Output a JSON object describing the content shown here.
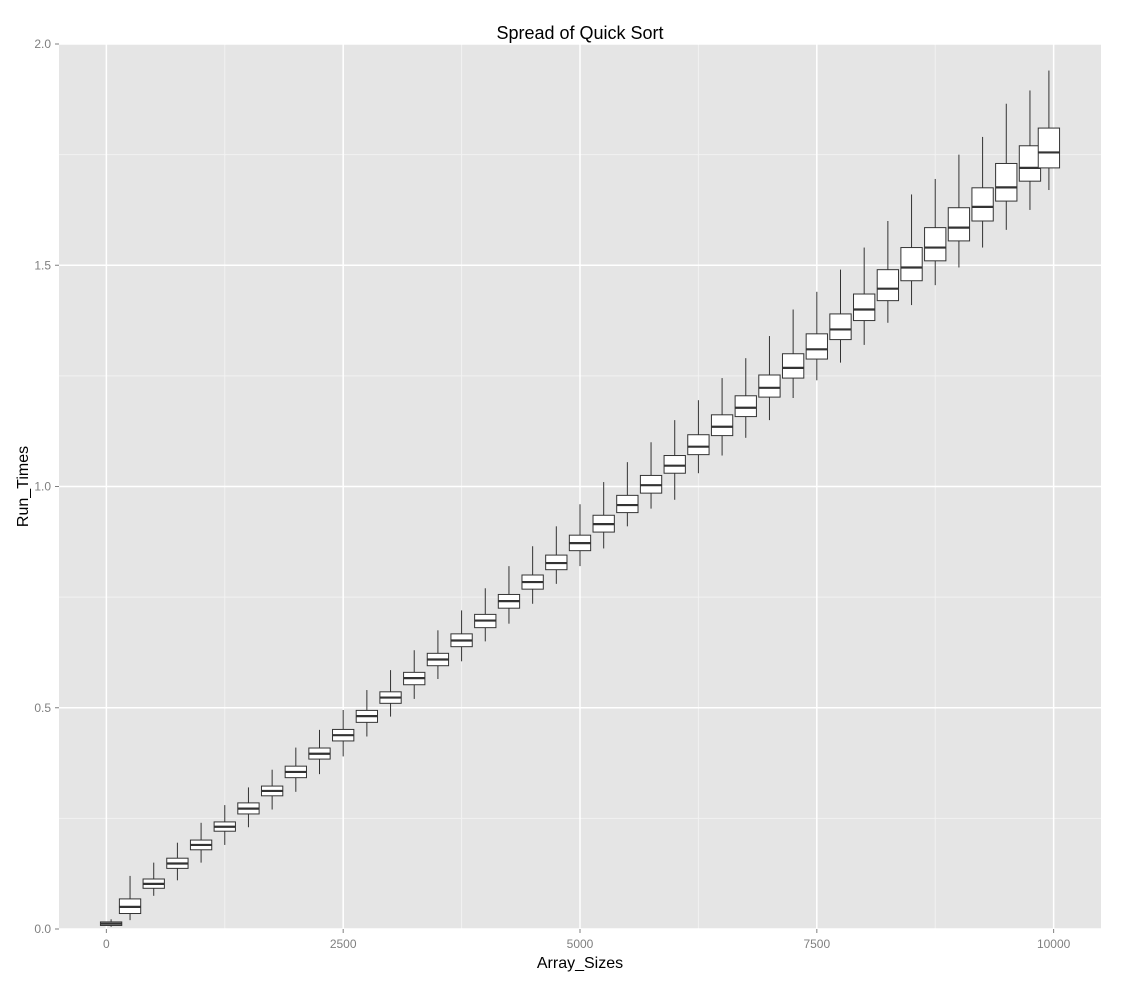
{
  "chart_data": {
    "type": "boxplot",
    "title": "Spread of Quick Sort",
    "xlabel": "Array_Sizes",
    "ylabel": "Run_Times",
    "xlim": [
      -500,
      10500
    ],
    "ylim": [
      0,
      2.0
    ],
    "x_ticks": [
      0,
      2500,
      5000,
      7500,
      10000
    ],
    "x_tick_labels": [
      "0",
      "2500",
      "5000",
      "7500",
      "10000"
    ],
    "y_ticks": [
      0.0,
      0.5,
      1.0,
      1.5,
      2.0
    ],
    "y_tick_labels": [
      "0.0",
      "0.5",
      "1.0",
      "1.5",
      "2.0"
    ],
    "grid": true,
    "colors": {
      "panel_bg": "#e5e5e5",
      "grid_major": "#ffffff",
      "grid_minor": "#f2f2f2",
      "box_fill": "#ffffff",
      "box_stroke": "#333333"
    },
    "boxes": [
      {
        "x": 50,
        "min": 0.005,
        "q1": 0.008,
        "median": 0.012,
        "q3": 0.016,
        "max": 0.022
      },
      {
        "x": 250,
        "min": 0.02,
        "q1": 0.035,
        "median": 0.05,
        "q3": 0.068,
        "max": 0.12
      },
      {
        "x": 500,
        "min": 0.075,
        "q1": 0.092,
        "median": 0.102,
        "q3": 0.113,
        "max": 0.15
      },
      {
        "x": 750,
        "min": 0.11,
        "q1": 0.137,
        "median": 0.148,
        "q3": 0.16,
        "max": 0.195
      },
      {
        "x": 1000,
        "min": 0.15,
        "q1": 0.179,
        "median": 0.19,
        "q3": 0.201,
        "max": 0.24
      },
      {
        "x": 1250,
        "min": 0.19,
        "q1": 0.221,
        "median": 0.231,
        "q3": 0.242,
        "max": 0.28
      },
      {
        "x": 1500,
        "min": 0.23,
        "q1": 0.26,
        "median": 0.272,
        "q3": 0.285,
        "max": 0.32
      },
      {
        "x": 1750,
        "min": 0.27,
        "q1": 0.301,
        "median": 0.312,
        "q3": 0.323,
        "max": 0.36
      },
      {
        "x": 2000,
        "min": 0.31,
        "q1": 0.342,
        "median": 0.355,
        "q3": 0.368,
        "max": 0.41
      },
      {
        "x": 2250,
        "min": 0.35,
        "q1": 0.384,
        "median": 0.396,
        "q3": 0.409,
        "max": 0.45
      },
      {
        "x": 2500,
        "min": 0.39,
        "q1": 0.425,
        "median": 0.438,
        "q3": 0.451,
        "max": 0.495
      },
      {
        "x": 2750,
        "min": 0.435,
        "q1": 0.467,
        "median": 0.481,
        "q3": 0.494,
        "max": 0.54
      },
      {
        "x": 3000,
        "min": 0.48,
        "q1": 0.51,
        "median": 0.523,
        "q3": 0.536,
        "max": 0.585
      },
      {
        "x": 3250,
        "min": 0.52,
        "q1": 0.552,
        "median": 0.567,
        "q3": 0.58,
        "max": 0.63
      },
      {
        "x": 3500,
        "min": 0.565,
        "q1": 0.595,
        "median": 0.609,
        "q3": 0.623,
        "max": 0.675
      },
      {
        "x": 3750,
        "min": 0.605,
        "q1": 0.638,
        "median": 0.652,
        "q3": 0.667,
        "max": 0.72
      },
      {
        "x": 4000,
        "min": 0.65,
        "q1": 0.681,
        "median": 0.697,
        "q3": 0.711,
        "max": 0.77
      },
      {
        "x": 4250,
        "min": 0.69,
        "q1": 0.725,
        "median": 0.741,
        "q3": 0.756,
        "max": 0.82
      },
      {
        "x": 4500,
        "min": 0.735,
        "q1": 0.768,
        "median": 0.784,
        "q3": 0.8,
        "max": 0.865
      },
      {
        "x": 4750,
        "min": 0.78,
        "q1": 0.812,
        "median": 0.827,
        "q3": 0.845,
        "max": 0.91
      },
      {
        "x": 5000,
        "min": 0.82,
        "q1": 0.855,
        "median": 0.872,
        "q3": 0.89,
        "max": 0.96
      },
      {
        "x": 5250,
        "min": 0.86,
        "q1": 0.897,
        "median": 0.915,
        "q3": 0.935,
        "max": 1.01
      },
      {
        "x": 5500,
        "min": 0.91,
        "q1": 0.941,
        "median": 0.958,
        "q3": 0.98,
        "max": 1.055
      },
      {
        "x": 5750,
        "min": 0.95,
        "q1": 0.985,
        "median": 1.003,
        "q3": 1.025,
        "max": 1.1
      },
      {
        "x": 6000,
        "min": 0.97,
        "q1": 1.03,
        "median": 1.047,
        "q3": 1.07,
        "max": 1.15
      },
      {
        "x": 6250,
        "min": 1.03,
        "q1": 1.072,
        "median": 1.09,
        "q3": 1.117,
        "max": 1.195
      },
      {
        "x": 6500,
        "min": 1.07,
        "q1": 1.115,
        "median": 1.135,
        "q3": 1.162,
        "max": 1.245
      },
      {
        "x": 6750,
        "min": 1.11,
        "q1": 1.158,
        "median": 1.178,
        "q3": 1.205,
        "max": 1.29
      },
      {
        "x": 7000,
        "min": 1.15,
        "q1": 1.202,
        "median": 1.223,
        "q3": 1.252,
        "max": 1.34
      },
      {
        "x": 7250,
        "min": 1.2,
        "q1": 1.245,
        "median": 1.268,
        "q3": 1.3,
        "max": 1.4
      },
      {
        "x": 7500,
        "min": 1.24,
        "q1": 1.288,
        "median": 1.31,
        "q3": 1.345,
        "max": 1.44
      },
      {
        "x": 7750,
        "min": 1.28,
        "q1": 1.332,
        "median": 1.355,
        "q3": 1.39,
        "max": 1.49
      },
      {
        "x": 8000,
        "min": 1.32,
        "q1": 1.375,
        "median": 1.4,
        "q3": 1.435,
        "max": 1.54
      },
      {
        "x": 8250,
        "min": 1.37,
        "q1": 1.42,
        "median": 1.447,
        "q3": 1.49,
        "max": 1.6
      },
      {
        "x": 8500,
        "min": 1.41,
        "q1": 1.465,
        "median": 1.495,
        "q3": 1.54,
        "max": 1.66
      },
      {
        "x": 8750,
        "min": 1.455,
        "q1": 1.51,
        "median": 1.54,
        "q3": 1.585,
        "max": 1.695
      },
      {
        "x": 9000,
        "min": 1.495,
        "q1": 1.555,
        "median": 1.585,
        "q3": 1.63,
        "max": 1.75
      },
      {
        "x": 9250,
        "min": 1.54,
        "q1": 1.6,
        "median": 1.632,
        "q3": 1.675,
        "max": 1.79
      },
      {
        "x": 9500,
        "min": 1.58,
        "q1": 1.645,
        "median": 1.676,
        "q3": 1.73,
        "max": 1.865
      },
      {
        "x": 9750,
        "min": 1.625,
        "q1": 1.69,
        "median": 1.72,
        "q3": 1.77,
        "max": 1.895
      },
      {
        "x": 9950,
        "min": 1.67,
        "q1": 1.72,
        "median": 1.755,
        "q3": 1.81,
        "max": 1.94
      }
    ]
  }
}
